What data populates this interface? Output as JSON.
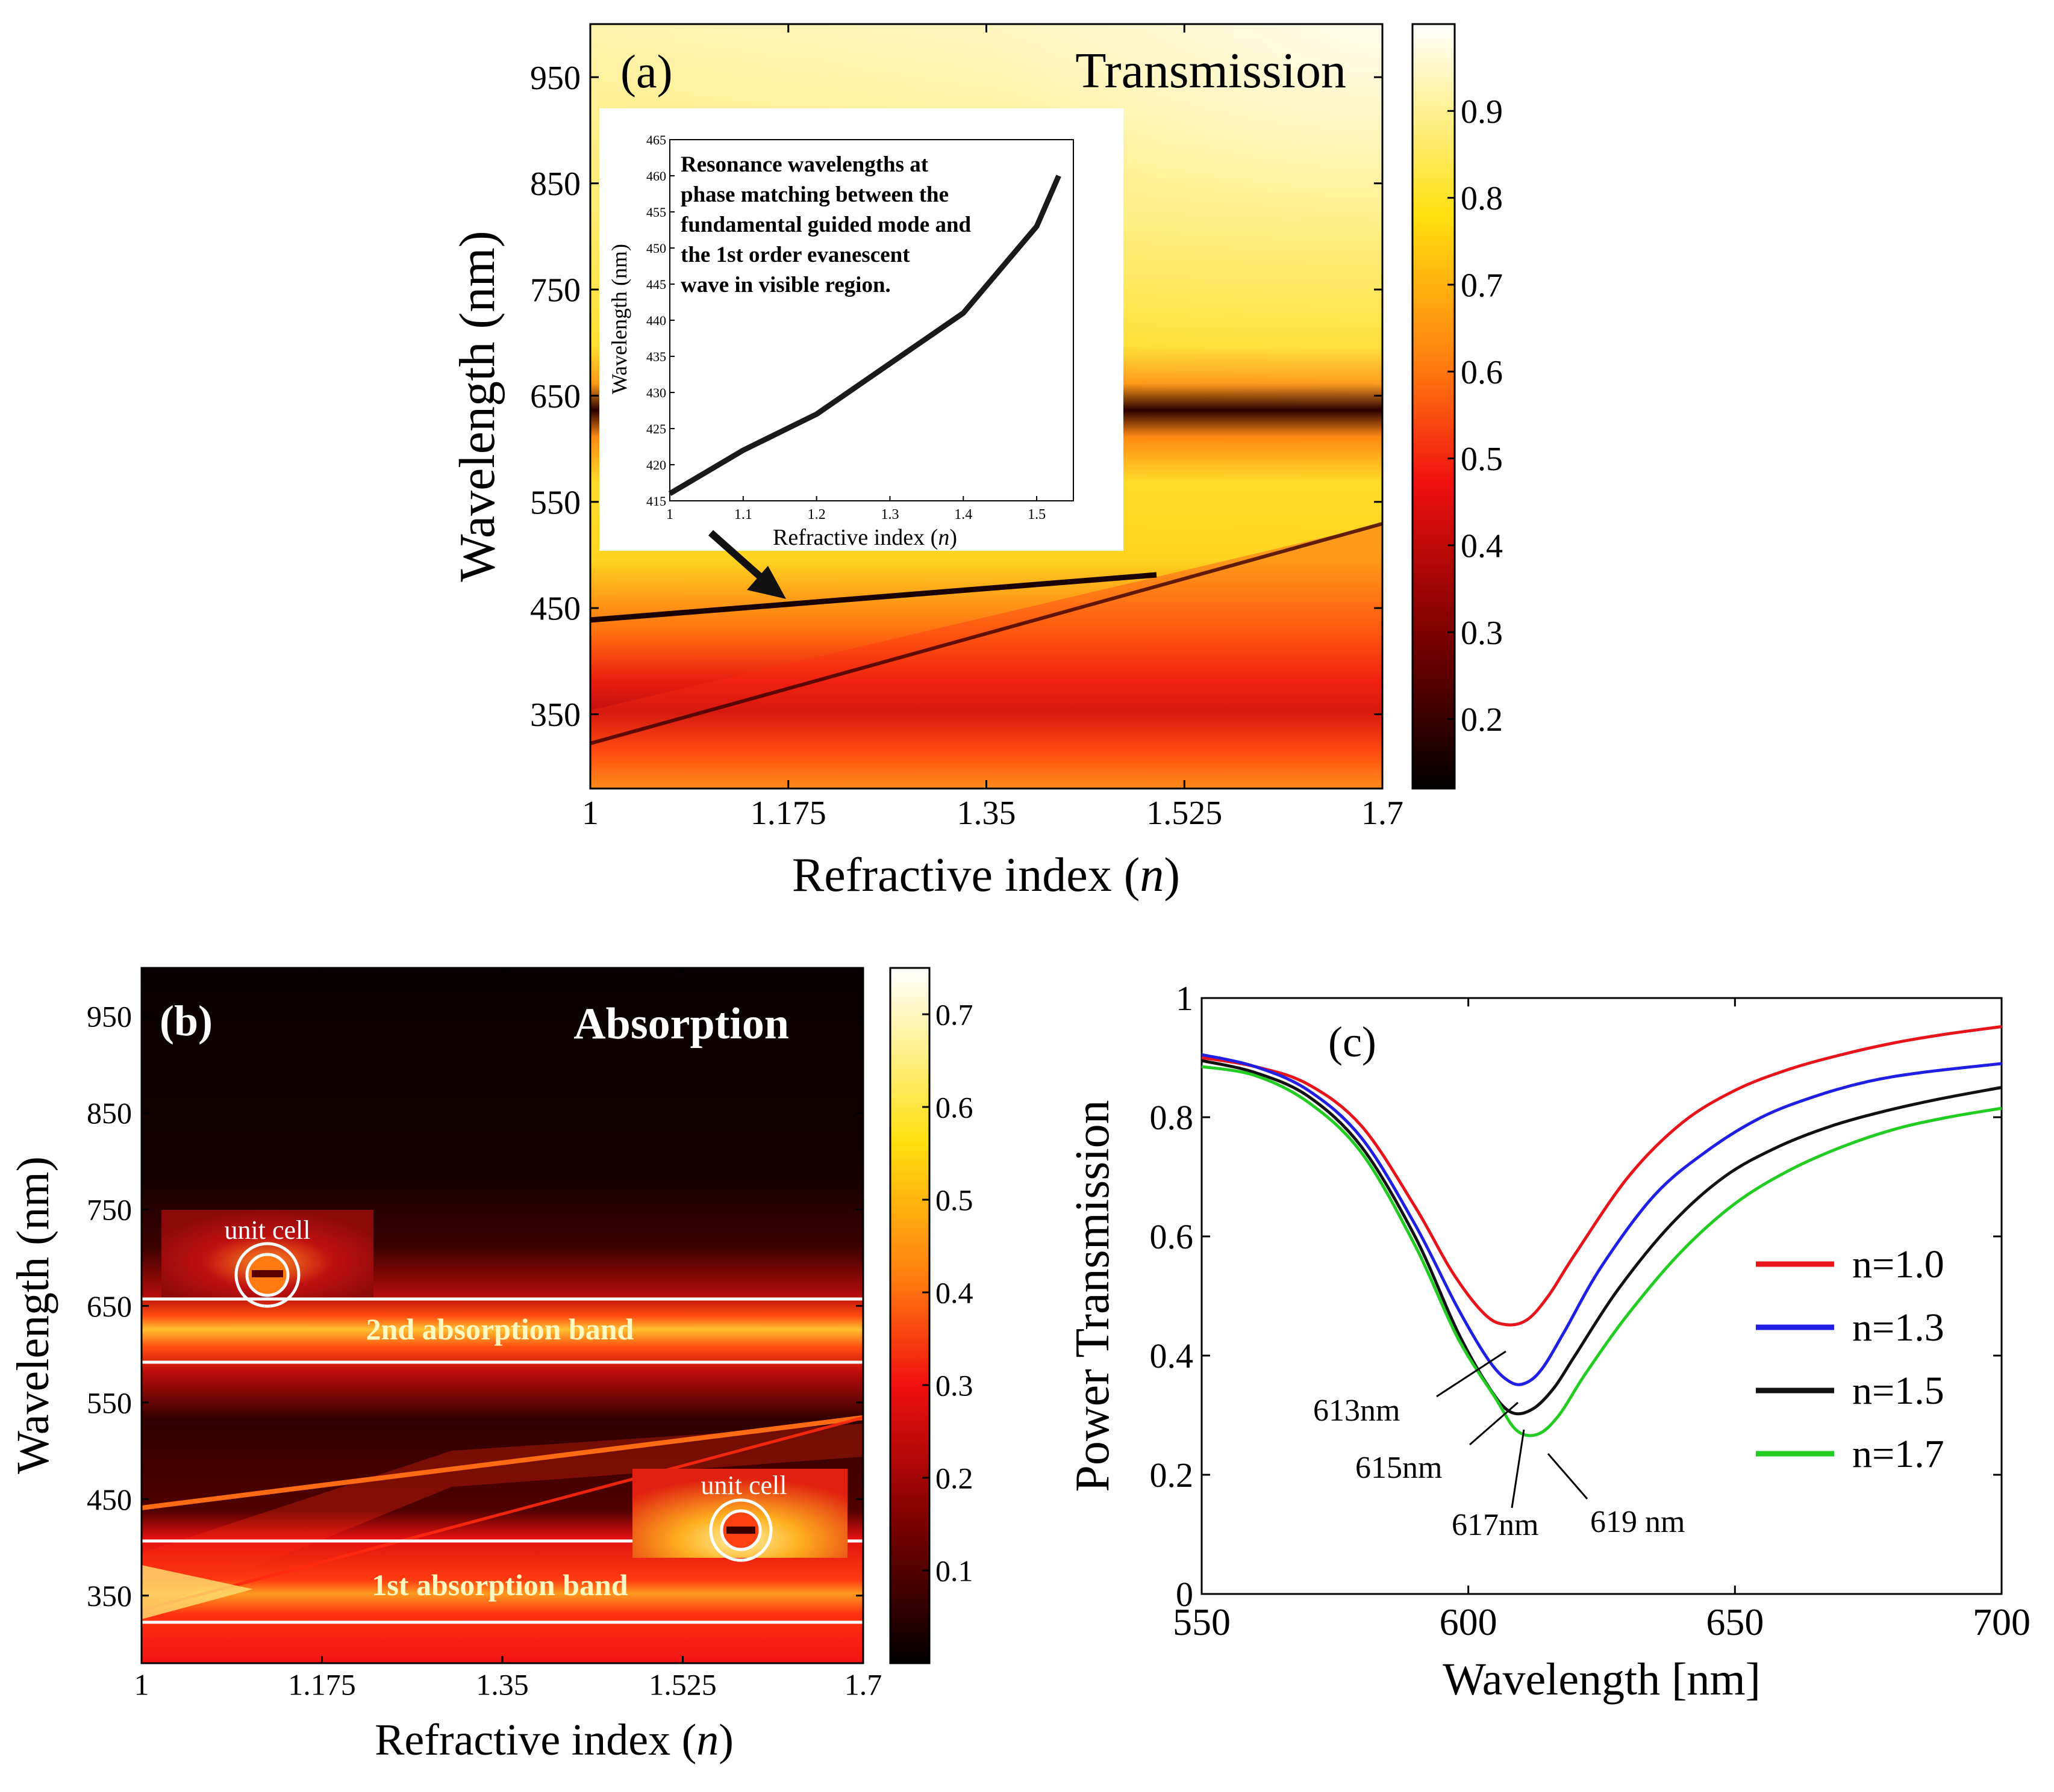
{
  "figure": {
    "panel_a": {
      "label": "(a)",
      "title": "Transmission",
      "xlabel_main": "Refractive index (",
      "xlabel_var": "n",
      "xlabel_close": ")",
      "ylabel": "Wavelength (nm)",
      "colorbar_ticks": [
        "0.9",
        "0.8",
        "0.7",
        "0.6",
        "0.5",
        "0.4",
        "0.3",
        "0.2"
      ],
      "inset": {
        "note_lines": [
          "Resonance wavelengths at",
          "phase matching between the",
          "fundamental guided mode and",
          "the 1st order evanescent",
          "wave in visible region."
        ],
        "xlabel_main": "Refractive index (",
        "xlabel_var": "n",
        "xlabel_close": ")",
        "ylabel": "Wavelength (nm)"
      }
    },
    "panel_b": {
      "label": "(b)",
      "title": "Absorption",
      "xlabel_main": "Refractive index (",
      "xlabel_var": "n",
      "xlabel_close": ")",
      "ylabel": "Wavelength (nm)",
      "colorbar_ticks": [
        "0.7",
        "0.6",
        "0.5",
        "0.4",
        "0.3",
        "0.2",
        "0.1"
      ],
      "band_labels": [
        "2nd absorption band",
        "1st absorption band"
      ],
      "unit_cell_label": "unit cell"
    },
    "panel_c": {
      "label": "(c)",
      "xlabel": "Wavelength [nm]",
      "ylabel": "Power Transmission",
      "annotations": [
        "613nm",
        "615nm",
        "617nm",
        "619 nm"
      ]
    }
  },
  "chart_data": [
    {
      "panel": "a",
      "type": "heatmap",
      "title": "Transmission",
      "xlabel": "Refractive index (n)",
      "ylabel": "Wavelength (nm)",
      "xlim": [
        1,
        1.7
      ],
      "ylim": [
        280,
        1000
      ],
      "x_ticks": [
        "1",
        "1.175",
        "1.35",
        "1.525",
        "1.7"
      ],
      "y_ticks": [
        "950",
        "850",
        "750",
        "650",
        "550",
        "450",
        "350"
      ],
      "colorbar": {
        "min": 0.12,
        "max": 1.0,
        "ticks": [
          0.9,
          0.8,
          0.7,
          0.6,
          0.5,
          0.4,
          0.3,
          0.2
        ]
      },
      "features": [
        {
          "name": "2nd band transmission dip",
          "wavelength_nm": 615,
          "min_value": 0.3
        },
        {
          "name": "guided-mode resonance line",
          "from": [
            1,
            417
          ],
          "to": [
            1.52,
            468
          ]
        },
        {
          "name": "1st band transmission dip",
          "wavelength_nm": 330
        }
      ]
    },
    {
      "panel": "a-inset",
      "type": "line",
      "xlabel": "Refractive index (n)",
      "ylabel": "Wavelength (nm)",
      "xlim": [
        1,
        1.55
      ],
      "ylim": [
        415,
        465
      ],
      "x_ticks": [
        "1",
        "1.1",
        "1.2",
        "1.3",
        "1.4",
        "1.5"
      ],
      "y_ticks": [
        "415",
        "420",
        "425",
        "430",
        "435",
        "440",
        "445",
        "450",
        "455",
        "460",
        "465"
      ],
      "x": [
        1.0,
        1.1,
        1.2,
        1.3,
        1.4,
        1.5,
        1.53
      ],
      "y": [
        416,
        422,
        427,
        434,
        441,
        453,
        460
      ]
    },
    {
      "panel": "b",
      "type": "heatmap",
      "title": "Absorption",
      "xlabel": "Refractive index (n)",
      "ylabel": "Wavelength (nm)",
      "xlim": [
        1,
        1.7
      ],
      "ylim": [
        280,
        1000
      ],
      "x_ticks": [
        "1",
        "1.175",
        "1.35",
        "1.525",
        "1.7"
      ],
      "y_ticks": [
        "950",
        "850",
        "750",
        "650",
        "550",
        "450",
        "350"
      ],
      "colorbar": {
        "min": 0.0,
        "max": 0.75,
        "ticks": [
          0.7,
          0.6,
          0.5,
          0.4,
          0.3,
          0.2,
          0.1
        ]
      },
      "bands": [
        {
          "label": "2nd absorption band",
          "range_nm": [
            575,
            645
          ]
        },
        {
          "label": "1st absorption band",
          "range_nm": [
            300,
            385
          ]
        }
      ]
    },
    {
      "panel": "c",
      "type": "line",
      "xlabel": "Wavelength [nm]",
      "ylabel": "Power Transmission",
      "xlim": [
        550,
        700
      ],
      "ylim": [
        0,
        1
      ],
      "x_ticks": [
        "550",
        "600",
        "650",
        "700"
      ],
      "y_ticks": [
        "0",
        "0.2",
        "0.4",
        "0.6",
        "0.8",
        "1"
      ],
      "legend_position": "right",
      "series": [
        {
          "name": "n=1.0",
          "color": "#e8141c",
          "x": [
            550,
            560,
            570,
            580,
            590,
            597,
            603,
            607,
            611,
            615,
            620,
            630,
            640,
            650,
            660,
            670,
            680,
            690,
            700
          ],
          "y": [
            0.9,
            0.885,
            0.855,
            0.785,
            0.65,
            0.54,
            0.47,
            0.452,
            0.46,
            0.5,
            0.57,
            0.7,
            0.79,
            0.845,
            0.88,
            0.905,
            0.925,
            0.94,
            0.952
          ]
        },
        {
          "name": "n=1.3",
          "color": "#1f1fe6",
          "x": [
            550,
            560,
            570,
            580,
            590,
            598,
            604,
            608,
            611,
            614,
            618,
            625,
            635,
            645,
            655,
            665,
            675,
            685,
            700
          ],
          "y": [
            0.905,
            0.885,
            0.845,
            0.765,
            0.62,
            0.48,
            0.39,
            0.355,
            0.355,
            0.38,
            0.44,
            0.55,
            0.67,
            0.745,
            0.8,
            0.835,
            0.86,
            0.875,
            0.89
          ]
        },
        {
          "name": "n=1.5",
          "color": "#111111",
          "x": [
            550,
            560,
            570,
            580,
            590,
            598,
            604,
            608,
            612,
            616,
            620,
            628,
            638,
            648,
            658,
            668,
            678,
            688,
            700
          ],
          "y": [
            0.895,
            0.875,
            0.835,
            0.75,
            0.6,
            0.44,
            0.345,
            0.305,
            0.31,
            0.345,
            0.4,
            0.51,
            0.62,
            0.7,
            0.75,
            0.785,
            0.81,
            0.83,
            0.85
          ]
        },
        {
          "name": "n=1.7",
          "color": "#22cc22",
          "x": [
            550,
            560,
            570,
            580,
            590,
            598,
            605,
            609,
            613,
            617,
            622,
            630,
            640,
            650,
            660,
            670,
            680,
            690,
            700
          ],
          "y": [
            0.885,
            0.87,
            0.825,
            0.74,
            0.585,
            0.43,
            0.33,
            0.275,
            0.268,
            0.3,
            0.37,
            0.47,
            0.575,
            0.655,
            0.71,
            0.75,
            0.78,
            0.8,
            0.815
          ]
        }
      ]
    }
  ]
}
